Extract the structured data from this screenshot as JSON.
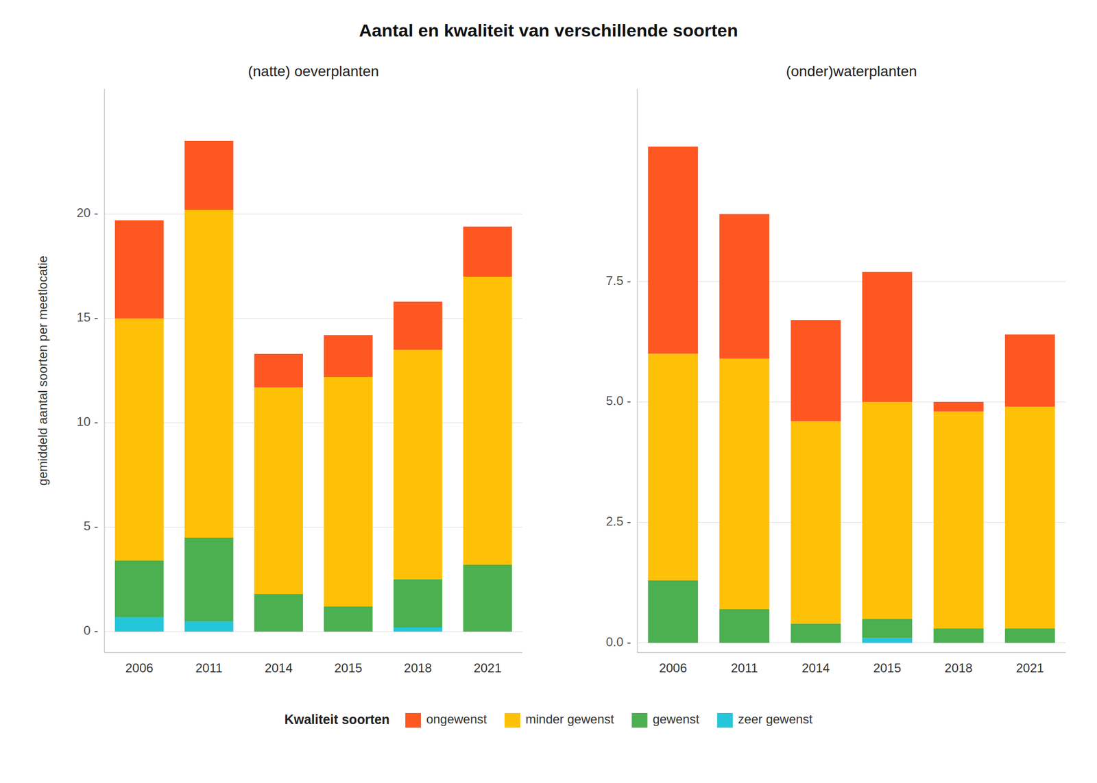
{
  "title": "Aantal en kwaliteit van verschillende soorten",
  "legend_title": "Kwaliteit soorten",
  "chart_data": [
    {
      "type": "bar",
      "stacked": true,
      "grid": true,
      "legend": "bottom",
      "title": "(natte) oeverplanten",
      "ylabel": "gemiddeld aantal soorten per meetlocatie",
      "categories": [
        "2006",
        "2011",
        "2014",
        "2015",
        "2018",
        "2021"
      ],
      "series": [
        {
          "name": "zeer gewenst",
          "color": "#26C6DA",
          "values": [
            0.7,
            0.5,
            0.0,
            0.0,
            0.2,
            0.0
          ]
        },
        {
          "name": "gewenst",
          "color": "#4CAF50",
          "values": [
            2.7,
            4.0,
            1.8,
            1.2,
            2.3,
            3.2
          ]
        },
        {
          "name": "minder gewenst",
          "color": "#FFC107",
          "values": [
            11.6,
            15.7,
            9.9,
            11.0,
            11.0,
            13.8
          ]
        },
        {
          "name": "ongewenst",
          "color": "#FF5722",
          "values": [
            4.7,
            3.3,
            1.6,
            2.0,
            2.3,
            2.4
          ]
        }
      ],
      "ylim": [
        -1,
        26
      ],
      "yticks": [
        {
          "value": 0,
          "label": "0 -"
        },
        {
          "value": 5,
          "label": "5 -"
        },
        {
          "value": 10,
          "label": "10 -"
        },
        {
          "value": 15,
          "label": "15 -"
        },
        {
          "value": 20,
          "label": "20 -"
        }
      ]
    },
    {
      "type": "bar",
      "stacked": true,
      "grid": true,
      "title": "(onder)waterplanten",
      "categories": [
        "2006",
        "2011",
        "2014",
        "2015",
        "2018",
        "2021"
      ],
      "series": [
        {
          "name": "zeer gewenst",
          "color": "#26C6DA",
          "values": [
            0.0,
            0.0,
            0.0,
            0.1,
            0.0,
            0.0
          ]
        },
        {
          "name": "gewenst",
          "color": "#4CAF50",
          "values": [
            1.3,
            0.7,
            0.4,
            0.4,
            0.3,
            0.3
          ]
        },
        {
          "name": "minder gewenst",
          "color": "#FFC107",
          "values": [
            4.7,
            5.2,
            4.2,
            4.5,
            4.5,
            4.6
          ]
        },
        {
          "name": "ongewenst",
          "color": "#FF5722",
          "values": [
            4.3,
            3.0,
            2.1,
            2.7,
            0.2,
            1.5
          ]
        }
      ],
      "ylim": [
        -0.2,
        11.5
      ],
      "yticks": [
        {
          "value": 0.0,
          "label": "0.0 -"
        },
        {
          "value": 2.5,
          "label": "2.5 -"
        },
        {
          "value": 5.0,
          "label": "5.0 -"
        },
        {
          "value": 7.5,
          "label": "7.5 -"
        }
      ]
    }
  ]
}
